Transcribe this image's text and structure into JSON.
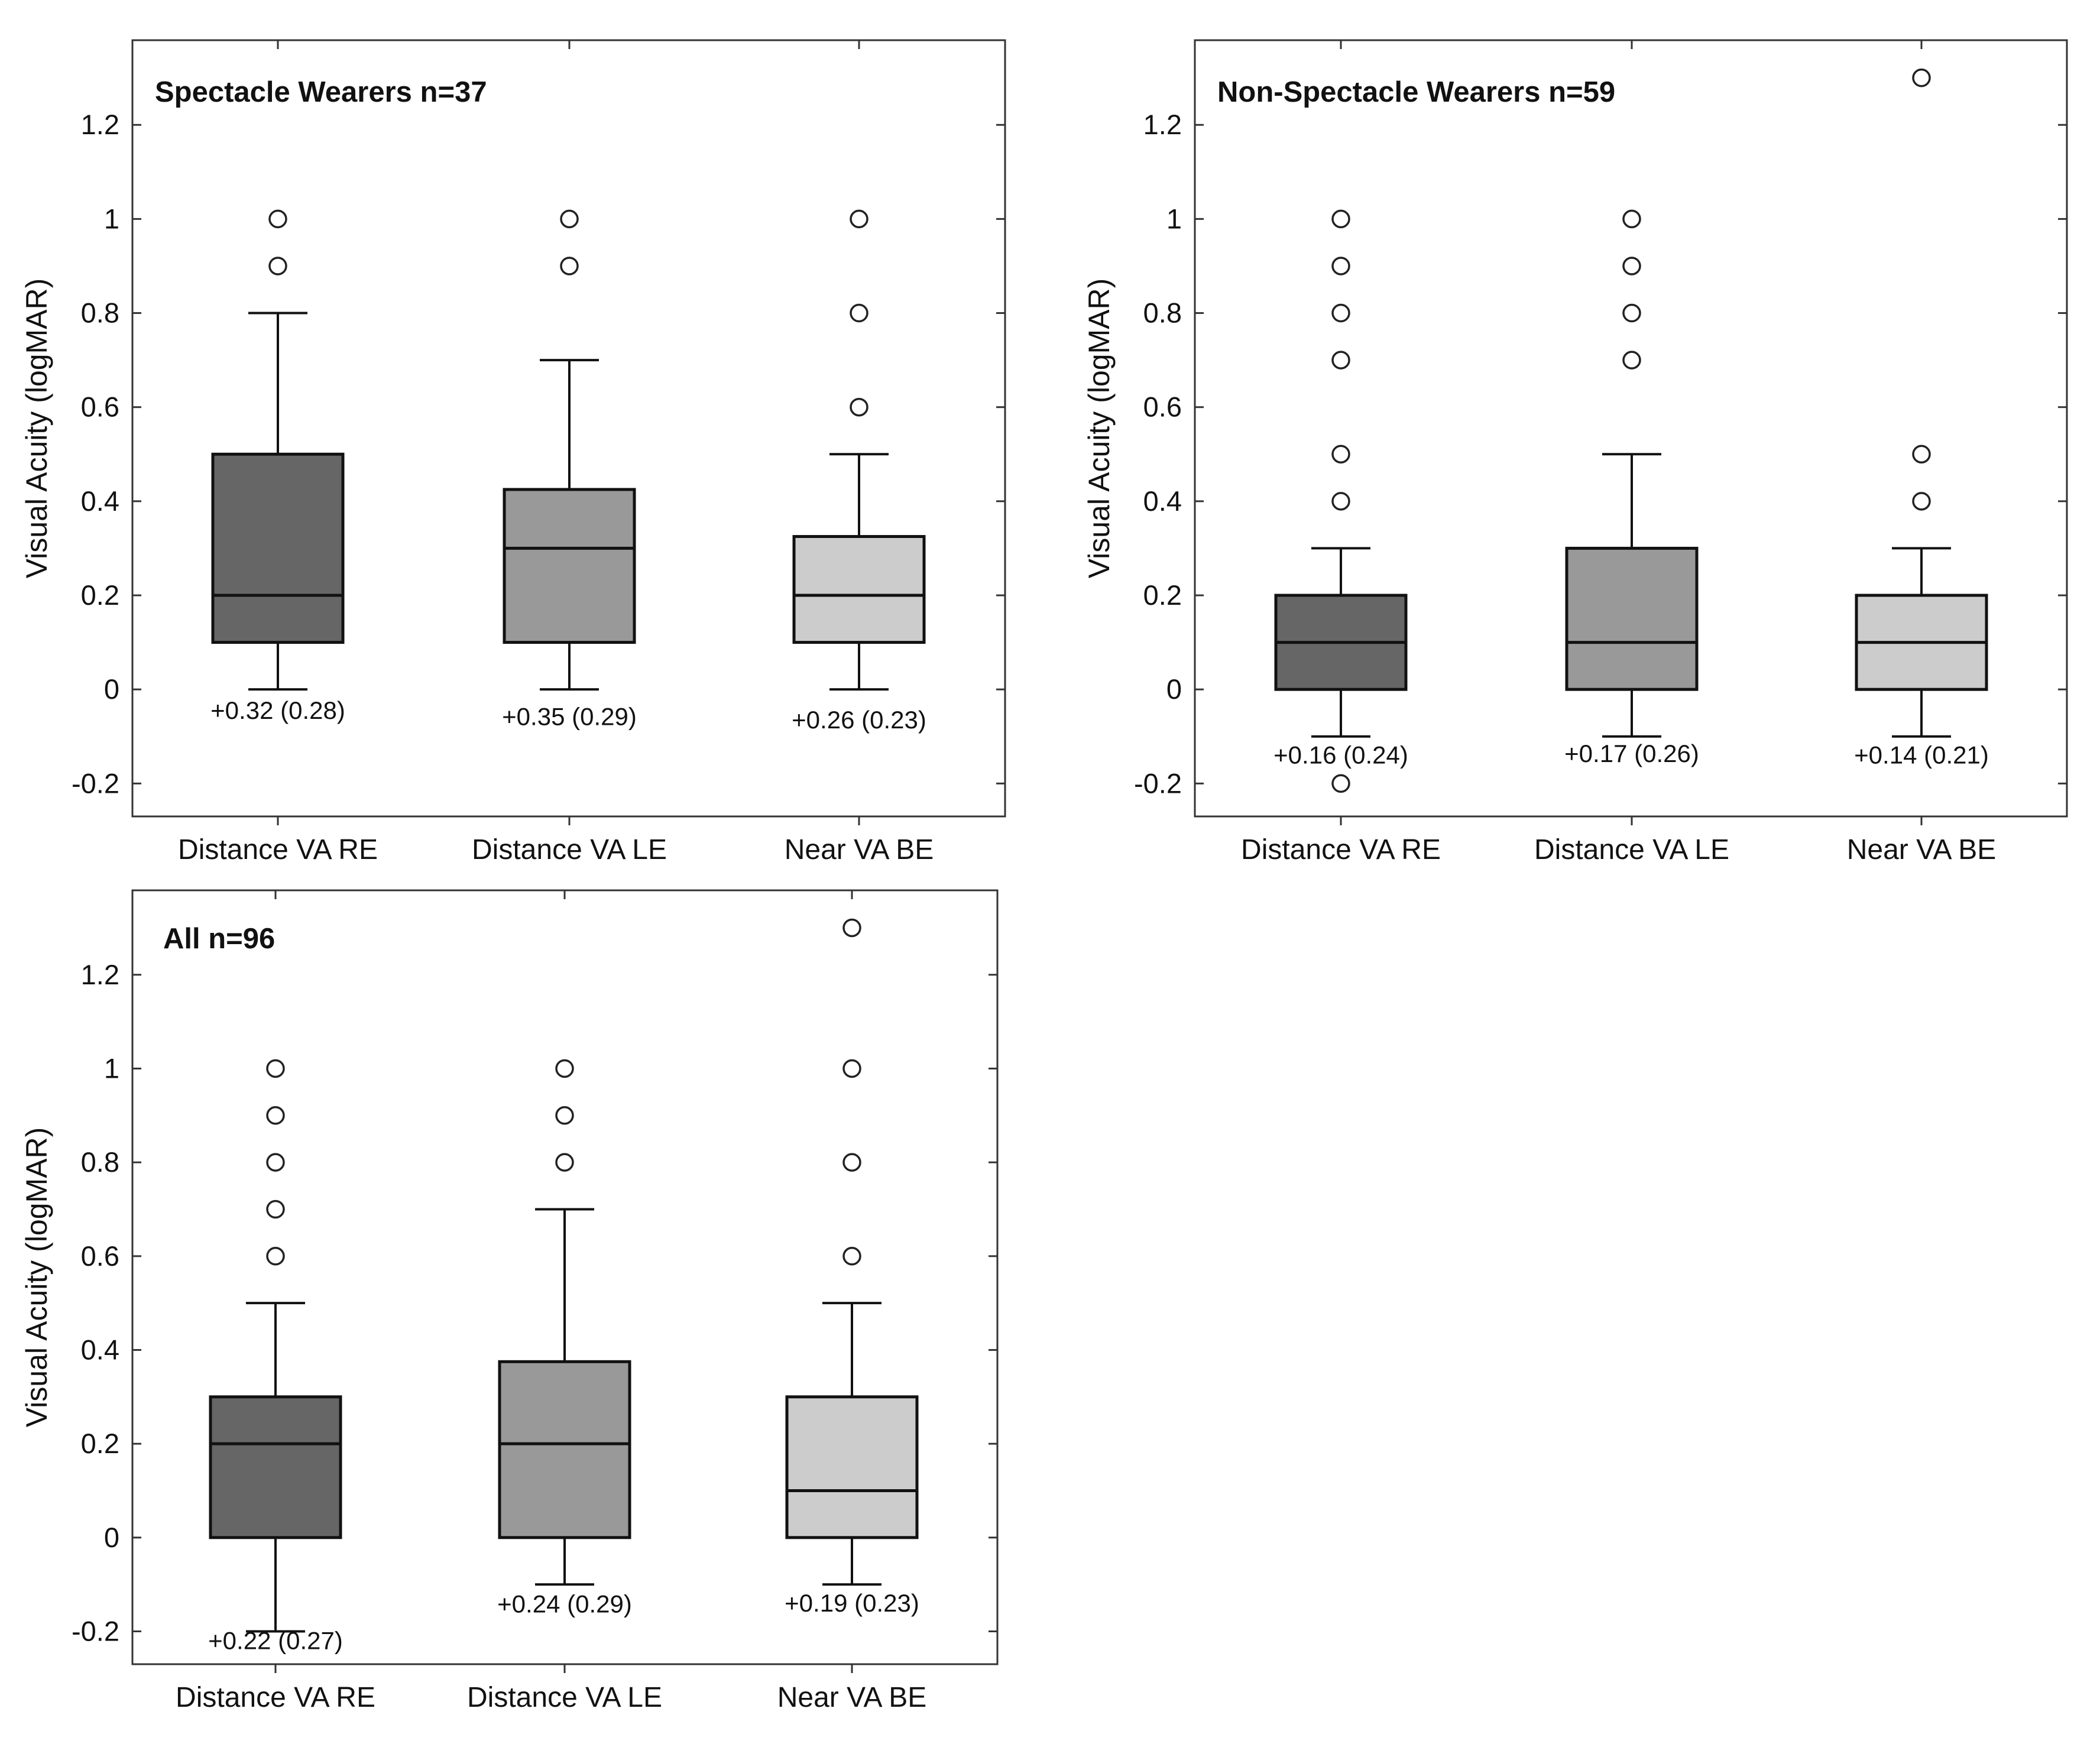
{
  "chart_data": [
    {
      "type": "box",
      "title": "Spectacle Wearers n=37",
      "ylabel": "Visual Acuity (logMAR)",
      "ylim": [
        -0.27,
        1.38
      ],
      "yticks": [
        -0.2,
        0,
        0.2,
        0.4,
        0.6,
        0.8,
        1,
        1.2
      ],
      "yticklabels": [
        "-0.2",
        "0",
        "0.2",
        "0.4",
        "0.6",
        "0.8",
        "1",
        "1.2"
      ],
      "categories": [
        "Distance VA RE",
        "Distance VA LE",
        "Near VA BE"
      ],
      "colors": [
        "#666666",
        "#999999",
        "#cccccc"
      ],
      "boxes": [
        {
          "whisker_low": 0,
          "q1": 0.1,
          "median": 0.2,
          "q3": 0.5,
          "whisker_high": 0.8,
          "outliers": [
            0.9,
            1.0
          ],
          "annotation": "+0.32 (0.28)",
          "annotation_y": -0.045
        },
        {
          "whisker_low": 0,
          "q1": 0.1,
          "median": 0.3,
          "q3": 0.425,
          "whisker_high": 0.7,
          "outliers": [
            0.9,
            1.0
          ],
          "annotation": "+0.35 (0.29)",
          "annotation_y": -0.058
        },
        {
          "whisker_low": 0,
          "q1": 0.1,
          "median": 0.2,
          "q3": 0.325,
          "whisker_high": 0.5,
          "outliers": [
            0.6,
            0.8,
            1.0
          ],
          "annotation": "+0.26 (0.23)",
          "annotation_y": -0.065
        }
      ]
    },
    {
      "type": "box",
      "title": "Non-Spectacle Wearers n=59",
      "ylabel": "Visual Acuity (logMAR)",
      "ylim": [
        -0.27,
        1.38
      ],
      "yticks": [
        -0.2,
        0,
        0.2,
        0.4,
        0.6,
        0.8,
        1,
        1.2
      ],
      "yticklabels": [
        "-0.2",
        "0",
        "0.2",
        "0.4",
        "0.6",
        "0.8",
        "1",
        "1.2"
      ],
      "categories": [
        "Distance VA RE",
        "Distance VA LE",
        "Near VA BE"
      ],
      "colors": [
        "#666666",
        "#999999",
        "#cccccc"
      ],
      "boxes": [
        {
          "whisker_low": -0.1,
          "q1": 0,
          "median": 0.1,
          "q3": 0.2,
          "whisker_high": 0.3,
          "outliers": [
            -0.2,
            0.4,
            0.5,
            0.7,
            0.8,
            0.9,
            1.0
          ],
          "annotation": "+0.16 (0.24)",
          "annotation_y": -0.14
        },
        {
          "whisker_low": -0.1,
          "q1": 0,
          "median": 0.1,
          "q3": 0.3,
          "whisker_high": 0.5,
          "outliers": [
            0.7,
            0.8,
            0.9,
            1.0
          ],
          "annotation": "+0.17 (0.26)",
          "annotation_y": -0.137
        },
        {
          "whisker_low": -0.1,
          "q1": 0,
          "median": 0.1,
          "q3": 0.2,
          "whisker_high": 0.3,
          "outliers": [
            0.4,
            0.5,
            1.3
          ],
          "annotation": "+0.14 (0.21)",
          "annotation_y": -0.14
        }
      ]
    },
    {
      "type": "box",
      "title": "All n=96",
      "ylabel": "Visual Acuity (logMAR)",
      "ylim": [
        -0.27,
        1.38
      ],
      "yticks": [
        -0.2,
        0,
        0.2,
        0.4,
        0.6,
        0.8,
        1,
        1.2
      ],
      "yticklabels": [
        "-0.2",
        "0",
        "0.2",
        "0.4",
        "0.6",
        "0.8",
        "1",
        "1.2"
      ],
      "categories": [
        "Distance VA RE",
        "Distance VA LE",
        "Near VA BE"
      ],
      "colors": [
        "#666666",
        "#999999",
        "#cccccc"
      ],
      "boxes": [
        {
          "whisker_low": -0.2,
          "q1": 0,
          "median": 0.2,
          "q3": 0.3,
          "whisker_high": 0.5,
          "outliers": [
            0.6,
            0.7,
            0.8,
            0.9,
            1.0
          ],
          "annotation": "+0.22 (0.27)",
          "annotation_y": -0.22
        },
        {
          "whisker_low": -0.1,
          "q1": 0,
          "median": 0.2,
          "q3": 0.375,
          "whisker_high": 0.7,
          "outliers": [
            0.8,
            0.9,
            1.0
          ],
          "annotation": "+0.24 (0.29)",
          "annotation_y": -0.142
        },
        {
          "whisker_low": -0.1,
          "q1": 0,
          "median": 0.1,
          "q3": 0.3,
          "whisker_high": 0.5,
          "outliers": [
            0.6,
            0.8,
            1.0,
            1.3
          ],
          "annotation": "+0.19 (0.23)",
          "annotation_y": -0.14
        }
      ]
    }
  ]
}
